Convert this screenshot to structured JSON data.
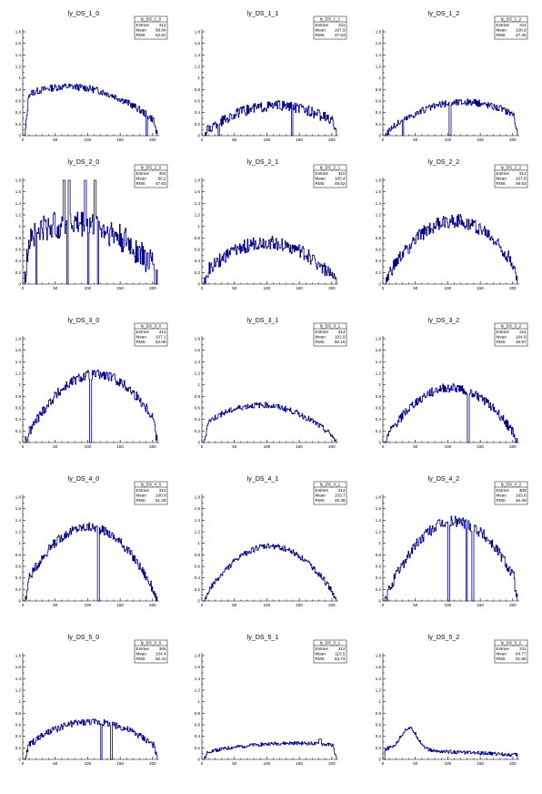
{
  "chart_data": [
    {
      "type": "histogram",
      "title": "ly_DS_1_0",
      "stats": {
        "name": "ly_DS_1_0",
        "entries_label": "Entries",
        "entries": "312",
        "mean_label": "Mean",
        "mean": "99.84",
        "rms_label": "RMS",
        "rms": "53.81"
      },
      "xlim": [
        0,
        210
      ],
      "ylim": [
        0,
        1.8
      ],
      "x_ticks": [
        0,
        50,
        100,
        150,
        200
      ],
      "y_ticks": [
        0,
        0.2,
        0.4,
        0.6,
        0.8,
        1,
        1.2,
        1.4,
        1.6,
        1.8
      ],
      "shape": {
        "center": 70,
        "peak": 0.85,
        "noise": 0.06,
        "base": 0.22,
        "dips": [
          {
            "x": 190,
            "w": 2,
            "v": 0
          }
        ]
      }
    },
    {
      "type": "histogram",
      "title": "ly_DS_1_1",
      "stats": {
        "name": "ly_DS_1_1",
        "entries_label": "Entries",
        "entries": "311",
        "mean_label": "Mean",
        "mean": "107.9",
        "rms_label": "RMS",
        "rms": "47.63"
      },
      "xlim": [
        0,
        210
      ],
      "ylim": [
        0,
        1.8
      ],
      "x_ticks": [
        0,
        50,
        100,
        150,
        200
      ],
      "y_ticks": [
        0,
        0.2,
        0.4,
        0.6,
        0.8,
        1,
        1.2,
        1.4,
        1.6,
        1.8
      ],
      "shape": {
        "center": 115,
        "peak": 0.52,
        "noise": 0.09,
        "base": 0.05,
        "dips": [
          {
            "x": 25,
            "w": 2,
            "v": 0
          },
          {
            "x": 138,
            "w": 2,
            "v": 0
          }
        ]
      }
    },
    {
      "type": "histogram",
      "title": "ly_DS_1_2",
      "stats": {
        "name": "ly_DS_1_2",
        "entries_label": "Entries",
        "entries": "311",
        "mean_label": "Mean",
        "mean": "108.9",
        "rms_label": "RMS",
        "rms": "47.35"
      },
      "xlim": [
        0,
        210
      ],
      "ylim": [
        0,
        1.8
      ],
      "x_ticks": [
        0,
        50,
        100,
        150,
        200
      ],
      "y_ticks": [
        0,
        0.2,
        0.4,
        0.6,
        0.8,
        1,
        1.2,
        1.4,
        1.6,
        1.8
      ],
      "shape": {
        "center": 125,
        "peak": 0.58,
        "noise": 0.06,
        "base": 0.05,
        "dips": [
          {
            "x": 30,
            "w": 2,
            "v": 0
          },
          {
            "x": 102,
            "w": 3,
            "v": 0
          }
        ]
      }
    },
    {
      "type": "histogram",
      "title": "ly_DS_2_0",
      "stats": {
        "name": "ly_DS_2_0",
        "entries_label": "Entries",
        "entries": "302",
        "mean_label": "Mean",
        "mean": "96.2",
        "rms_label": "RMS",
        "rms": "47.83"
      },
      "xlim": [
        0,
        210
      ],
      "ylim": [
        0,
        1.8
      ],
      "x_ticks": [
        0,
        50,
        100,
        150,
        200
      ],
      "y_ticks": [
        0,
        0.2,
        0.4,
        0.6,
        0.8,
        1,
        1.2,
        1.4,
        1.6,
        1.8
      ],
      "shape": {
        "center": 75,
        "peak": 1.05,
        "noise": 0.25,
        "base": 0.25,
        "spikes": [
          {
            "x": 62,
            "w": 3,
            "v": 1.9
          },
          {
            "x": 70,
            "w": 3,
            "v": 1.9
          },
          {
            "x": 95,
            "w": 3,
            "v": 1.9
          },
          {
            "x": 110,
            "w": 3,
            "v": 1.9
          }
        ],
        "dips": [
          {
            "x": 20,
            "w": 2,
            "v": 0
          },
          {
            "x": 68,
            "w": 2,
            "v": 0
          },
          {
            "x": 100,
            "w": 2,
            "v": 0
          },
          {
            "x": 115,
            "w": 2,
            "v": 0
          }
        ]
      }
    },
    {
      "type": "histogram",
      "title": "ly_DS_2_1",
      "stats": {
        "name": "ly_DS_2_1",
        "entries_label": "Entries",
        "entries": "310",
        "mean_label": "Mean",
        "mean": "105.4",
        "rms_label": "RMS",
        "rms": "49.52"
      },
      "xlim": [
        0,
        210
      ],
      "ylim": [
        0,
        1.8
      ],
      "x_ticks": [
        0,
        50,
        100,
        150,
        200
      ],
      "y_ticks": [
        0,
        0.2,
        0.4,
        0.6,
        0.8,
        1,
        1.2,
        1.4,
        1.6,
        1.8
      ],
      "shape": {
        "center": 100,
        "peak": 0.72,
        "noise": 0.12,
        "base": 0.05,
        "dips": []
      }
    },
    {
      "type": "histogram",
      "title": "ly_DS_2_2",
      "stats": {
        "name": "ly_DS_2_2",
        "entries_label": "Entries",
        "entries": "312",
        "mean_label": "Mean",
        "mean": "107.8",
        "rms_label": "RMS",
        "rms": "49.63"
      },
      "xlim": [
        0,
        210
      ],
      "ylim": [
        0,
        1.8
      ],
      "x_ticks": [
        0,
        50,
        100,
        150,
        200
      ],
      "y_ticks": [
        0,
        0.2,
        0.4,
        0.6,
        0.8,
        1,
        1.2,
        1.4,
        1.6,
        1.8
      ],
      "shape": {
        "center": 110,
        "peak": 1.1,
        "noise": 0.12,
        "base": 0.05,
        "dips": []
      }
    },
    {
      "type": "histogram",
      "title": "ly_DS_3_0",
      "stats": {
        "name": "ly_DS_3_0",
        "entries_label": "Entries",
        "entries": "312",
        "mean_label": "Mean",
        "mean": "107.1",
        "rms_label": "RMS",
        "rms": "52.06"
      },
      "xlim": [
        0,
        210
      ],
      "ylim": [
        0,
        1.8
      ],
      "x_ticks": [
        0,
        50,
        100,
        150,
        200
      ],
      "y_ticks": [
        0,
        0.2,
        0.4,
        0.6,
        0.8,
        1,
        1.2,
        1.4,
        1.6,
        1.8
      ],
      "shape": {
        "center": 112,
        "peak": 1.18,
        "noise": 0.09,
        "base": 0.05,
        "dips": [
          {
            "x": 103,
            "w": 3,
            "v": 0
          }
        ]
      }
    },
    {
      "type": "histogram",
      "title": "ly_DS_3_1",
      "stats": {
        "name": "ly_DS_3_1",
        "entries_label": "Entries",
        "entries": "314",
        "mean_label": "Mean",
        "mean": "102.9",
        "rms_label": "RMS",
        "rms": "50.16"
      },
      "xlim": [
        0,
        210
      ],
      "ylim": [
        0,
        1.8
      ],
      "x_ticks": [
        0,
        50,
        100,
        150,
        200
      ],
      "y_ticks": [
        0,
        0.2,
        0.4,
        0.6,
        0.8,
        1,
        1.2,
        1.4,
        1.6,
        1.8
      ],
      "shape": {
        "center": 90,
        "peak": 0.65,
        "noise": 0.05,
        "base": 0.05,
        "dips": []
      }
    },
    {
      "type": "histogram",
      "title": "ly_DS_3_2",
      "stats": {
        "name": "ly_DS_3_2",
        "entries_label": "Entries",
        "entries": "311",
        "mean_label": "Mean",
        "mean": "104.6",
        "rms_label": "RMS",
        "rms": "49.97"
      },
      "xlim": [
        0,
        210
      ],
      "ylim": [
        0,
        1.8
      ],
      "x_ticks": [
        0,
        50,
        100,
        150,
        200
      ],
      "y_ticks": [
        0,
        0.2,
        0.4,
        0.6,
        0.8,
        1,
        1.2,
        1.4,
        1.6,
        1.8
      ],
      "shape": {
        "center": 105,
        "peak": 0.95,
        "noise": 0.08,
        "base": 0.05,
        "dips": [
          {
            "x": 130,
            "w": 3,
            "v": 0
          }
        ]
      }
    },
    {
      "type": "histogram",
      "title": "ly_DS_4_0",
      "stats": {
        "name": "ly_DS_4_0",
        "entries_label": "Entries",
        "entries": "310",
        "mean_label": "Mean",
        "mean": "100.8",
        "rms_label": "RMS",
        "rms": "51.29"
      },
      "xlim": [
        0,
        210
      ],
      "ylim": [
        0,
        1.8
      ],
      "x_ticks": [
        0,
        50,
        100,
        150,
        200
      ],
      "y_ticks": [
        0,
        0.2,
        0.4,
        0.6,
        0.8,
        1,
        1.2,
        1.4,
        1.6,
        1.8
      ],
      "shape": {
        "center": 100,
        "peak": 1.28,
        "noise": 0.08,
        "base": 0.05,
        "dips": [
          {
            "x": 115,
            "w": 3,
            "v": 0
          }
        ]
      }
    },
    {
      "type": "histogram",
      "title": "ly_DS_4_1",
      "stats": {
        "name": "ly_DS_4_1",
        "entries_label": "Entries",
        "entries": "314",
        "mean_label": "Mean",
        "mean": "103.7",
        "rms_label": "RMS",
        "rms": "49.36"
      },
      "xlim": [
        0,
        210
      ],
      "ylim": [
        0,
        1.8
      ],
      "x_ticks": [
        0,
        50,
        100,
        150,
        200
      ],
      "y_ticks": [
        0,
        0.2,
        0.4,
        0.6,
        0.8,
        1,
        1.2,
        1.4,
        1.6,
        1.8
      ],
      "shape": {
        "center": 105,
        "peak": 0.95,
        "noise": 0.05,
        "base": 0.05,
        "dips": []
      }
    },
    {
      "type": "histogram",
      "title": "ly_DS_4_2",
      "stats": {
        "name": "ly_DS_4_2",
        "entries_label": "Entries",
        "entries": "309",
        "mean_label": "Mean",
        "mean": "103.6",
        "rms_label": "RMS",
        "rms": "46.49"
      },
      "xlim": [
        0,
        210
      ],
      "ylim": [
        0,
        1.8
      ],
      "x_ticks": [
        0,
        50,
        100,
        150,
        200
      ],
      "y_ticks": [
        0,
        0.2,
        0.4,
        0.6,
        0.8,
        1,
        1.2,
        1.4,
        1.6,
        1.8
      ],
      "shape": {
        "center": 110,
        "peak": 1.38,
        "noise": 0.1,
        "base": 0.05,
        "dips": [
          {
            "x": 100,
            "w": 3,
            "v": 0
          },
          {
            "x": 128,
            "w": 2,
            "v": 0
          },
          {
            "x": 137,
            "w": 3,
            "v": 0
          }
        ]
      }
    },
    {
      "type": "histogram",
      "title": "ly_DS_5_0",
      "stats": {
        "name": "ly_DS_5_0",
        "entries_label": "Entries",
        "entries": "306",
        "mean_label": "Mean",
        "mean": "104.4",
        "rms_label": "RMS",
        "rms": "50.41"
      },
      "xlim": [
        0,
        210
      ],
      "ylim": [
        0,
        1.8
      ],
      "x_ticks": [
        0,
        50,
        100,
        150,
        200
      ],
      "y_ticks": [
        0,
        0.2,
        0.4,
        0.6,
        0.8,
        1,
        1.2,
        1.4,
        1.6,
        1.8
      ],
      "shape": {
        "center": 105,
        "peak": 0.65,
        "noise": 0.06,
        "base": 0.2,
        "dips": [
          {
            "x": 120,
            "w": 2,
            "v": 0
          },
          {
            "x": 135,
            "w": 3,
            "v": 0
          }
        ]
      }
    },
    {
      "type": "histogram",
      "title": "ly_DS_5_1",
      "stats": {
        "name": "ly_DS_5_1",
        "entries_label": "Entries",
        "entries": "313",
        "mean_label": "Mean",
        "mean": "115.5",
        "rms_label": "RMS",
        "rms": "53.74"
      },
      "xlim": [
        0,
        210
      ],
      "ylim": [
        0,
        1.8
      ],
      "x_ticks": [
        0,
        50,
        100,
        150,
        200
      ],
      "y_ticks": [
        0,
        0.2,
        0.4,
        0.6,
        0.8,
        1,
        1.2,
        1.4,
        1.6,
        1.8
      ],
      "shape": {
        "center": 140,
        "peak": 0.28,
        "noise": 0.03,
        "base": 0.12,
        "spikes": [
          {
            "x": 180,
            "w": 4,
            "v": 0.35
          }
        ],
        "dips": []
      }
    },
    {
      "type": "histogram",
      "title": "ly_DS_5_2",
      "stats": {
        "name": "ly_DS_5_2",
        "entries_label": "Entries",
        "entries": "311",
        "mean_label": "Mean",
        "mean": "84.77",
        "rms_label": "RMS",
        "rms": "51.86"
      },
      "xlim": [
        0,
        210
      ],
      "ylim": [
        0,
        1.8
      ],
      "x_ticks": [
        0,
        50,
        100,
        150,
        200
      ],
      "y_ticks": [
        0,
        0.2,
        0.4,
        0.6,
        0.8,
        1,
        1.2,
        1.4,
        1.6,
        1.8
      ],
      "shape": {
        "center": 40,
        "peak": 0.38,
        "noise": 0.03,
        "base": 0.08,
        "decay": true,
        "dips": []
      }
    }
  ]
}
